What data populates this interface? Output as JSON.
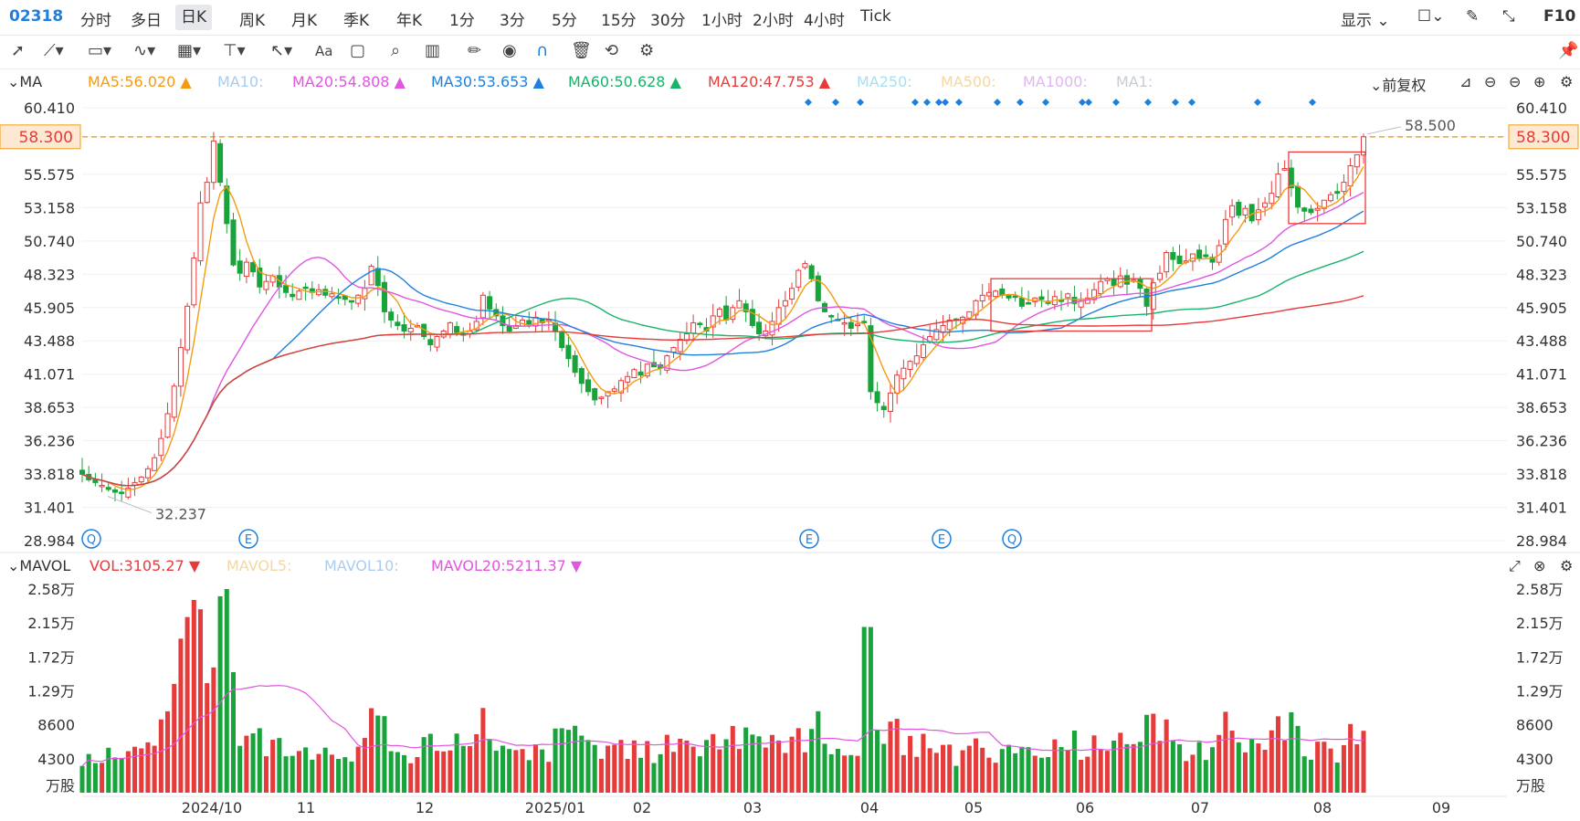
{
  "header": {
    "ticker": "02318",
    "timeframes": [
      "分时",
      "多日",
      "日K",
      "周K",
      "月K",
      "季K",
      "年K",
      "1分",
      "3分",
      "5分",
      "15分",
      "30分",
      "1小时",
      "2小时",
      "4小时",
      "Tick"
    ],
    "active_timeframe": "日K",
    "display_label": "显示",
    "f10_label": "F10"
  },
  "toolbar": {
    "icons": [
      "cursor-icon",
      "line-icon",
      "rect-icon",
      "wave-icon",
      "measure-icon",
      "fib-icon",
      "arrow-icon",
      "text-icon",
      "comment-icon",
      "search-icon",
      "indicator-icon",
      "pen-icon",
      "eye-icon",
      "magnet-icon",
      "trash-icon",
      "sync-icon",
      "settings-icon"
    ],
    "text_tool_label": "Aa"
  },
  "ma_bar": {
    "label": "MA",
    "items": [
      {
        "text": "MA5:56.020",
        "color": "#f39c12",
        "arrow": "▲"
      },
      {
        "text": "MA10:",
        "color": "#a8cdf0",
        "arrow": ""
      },
      {
        "text": "MA20:54.808",
        "color": "#e056e0",
        "arrow": "▲"
      },
      {
        "text": "MA30:53.653",
        "color": "#1e7fe0",
        "arrow": "▲"
      },
      {
        "text": "MA60:50.628",
        "color": "#19b36b",
        "arrow": "▲"
      },
      {
        "text": "MA120:47.753",
        "color": "#e63b3b",
        "arrow": "▲"
      },
      {
        "text": "MA250:",
        "color": "#a8e0f0",
        "arrow": ""
      },
      {
        "text": "MA500:",
        "color": "#f5d7a0",
        "arrow": ""
      },
      {
        "text": "MA1000:",
        "color": "#e0b8f0",
        "arrow": ""
      },
      {
        "text": "MA1:",
        "color": "#c8ccd4",
        "arrow": ""
      }
    ],
    "adjust_label": "前复权"
  },
  "vol_bar": {
    "label": "MAVOL",
    "items": [
      {
        "text": "VOL:3105.27",
        "color": "#e63b3b",
        "arrow": "▼"
      },
      {
        "text": "MAVOL5:",
        "color": "#f5d7a0",
        "arrow": ""
      },
      {
        "text": "MAVOL10:",
        "color": "#a8cdf0",
        "arrow": ""
      },
      {
        "text": "MAVOL20:5211.37",
        "color": "#e056e0",
        "arrow": "▼"
      }
    ]
  },
  "colors": {
    "up": "#e63b3b",
    "down": "#19a33b",
    "ma5": "#f39c12",
    "ma20": "#e056e0",
    "ma30": "#1e7fe0",
    "ma60": "#19b36b",
    "ma120": "#e63b3b",
    "price_line": "#f39c12"
  },
  "chart_data": {
    "type": "candlestick",
    "price_axis_ticks": [
      "60.410",
      "58.300",
      "55.575",
      "53.158",
      "50.740",
      "48.323",
      "45.905",
      "43.488",
      "41.071",
      "38.653",
      "36.236",
      "33.818",
      "31.401",
      "28.984"
    ],
    "price_ylim": [
      28.984,
      60.41
    ],
    "current_price": "58.300",
    "high_marker": "58.500",
    "low_marker": "32.237",
    "volume_axis_ticks": [
      "2.58万",
      "2.15万",
      "1.72万",
      "1.29万",
      "8600",
      "4300"
    ],
    "volume_unit": "万股",
    "volume_ylim": [
      0,
      25800
    ],
    "x_labels": [
      "2024/10",
      "11",
      "12",
      "2025/01",
      "02",
      "03",
      "04",
      "05",
      "06",
      "07",
      "08",
      "09"
    ],
    "event_markers": [
      "Q",
      "E",
      "E",
      "E",
      "Q"
    ],
    "close_series": [
      33.8,
      33.4,
      33.2,
      33.0,
      32.7,
      32.5,
      32.4,
      32.8,
      33.2,
      33.6,
      34.2,
      35.0,
      36.4,
      38.2,
      40.2,
      43.0,
      46.0,
      49.5,
      53.5,
      55.0,
      58.0,
      55.0,
      52.0,
      49.0,
      48.4,
      49.2,
      48.5,
      47.4,
      47.8,
      48.2,
      47.4,
      47.0,
      46.7,
      47.1,
      47.3,
      47.0,
      47.2,
      46.8,
      46.9,
      46.6,
      46.5,
      46.3,
      46.8,
      47.3,
      48.9,
      47.5,
      45.6,
      45.0,
      44.6,
      44.2,
      44.4,
      44.6,
      43.8,
      43.2,
      43.8,
      44.2,
      44.8,
      44.1,
      43.9,
      44.2,
      44.9,
      46.8,
      45.8,
      45.3,
      44.6,
      44.2,
      44.6,
      45.0,
      44.7,
      45.2,
      44.8,
      45.0,
      44.2,
      43.0,
      42.2,
      41.2,
      40.4,
      39.8,
      39.2,
      39.4,
      39.8,
      40.0,
      40.6,
      40.9,
      41.4,
      41.0,
      41.8,
      41.6,
      41.5,
      42.4,
      43.0,
      43.6,
      44.0,
      44.8,
      44.7,
      44.2,
      45.3,
      45.8,
      45.0,
      45.9,
      46.4,
      45.6,
      44.6,
      44.0,
      44.2,
      44.9,
      45.9,
      46.4,
      47.3,
      48.6,
      49.1,
      48.0,
      46.4,
      45.6,
      45.3,
      45.0,
      44.8,
      44.4,
      44.7,
      44.8,
      39.8,
      39.0,
      38.5,
      39.7,
      41.0,
      41.5,
      42.0,
      42.4,
      43.2,
      43.8,
      44.3,
      44.6,
      45.0,
      45.0,
      45.2,
      45.6,
      46.4,
      46.8,
      47.0,
      47.1,
      46.8,
      46.6,
      46.7,
      46.0,
      46.2,
      46.6,
      46.5,
      46.2,
      46.7,
      46.4,
      46.9,
      46.2,
      46.4,
      46.6,
      47.2,
      47.8,
      48.0,
      47.5,
      48.2,
      47.6,
      47.9,
      47.3,
      46.0,
      47.7,
      48.4,
      49.9,
      49.4,
      49.1,
      49.3,
      49.8,
      49.5,
      49.6,
      49.2,
      50.4,
      52.3,
      53.3,
      52.6,
      53.1,
      52.2,
      53.0,
      53.5,
      54.2,
      55.6,
      56.0,
      54.6,
      53.2,
      52.9,
      52.8,
      53.1,
      53.7,
      54.1,
      54.2,
      55.0,
      56.2,
      57.0,
      58.3
    ]
  }
}
